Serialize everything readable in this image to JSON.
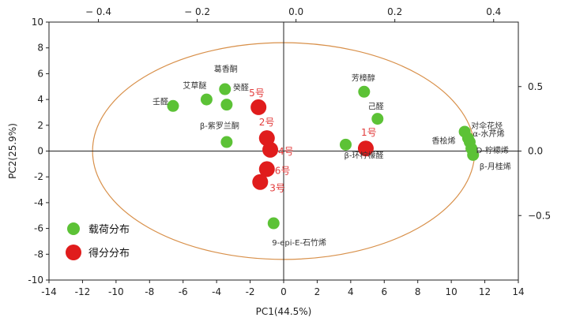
{
  "chart_data": {
    "type": "scatter",
    "xlabel": "PC1(44.5%)",
    "ylabel": "PC2(25.9%)",
    "xlim": [
      -14,
      14
    ],
    "ylim": [
      -10,
      10
    ],
    "x_ticks": [
      "-14",
      "-12",
      "-10",
      "-8",
      "-6",
      "-4",
      "-2",
      "0",
      "2",
      "4",
      "6",
      "8",
      "10",
      "12",
      "14"
    ],
    "y_ticks": [
      "-10",
      "-8",
      "-6",
      "-4",
      "-2",
      "0",
      "2",
      "4",
      "6",
      "8",
      "10"
    ],
    "top_axis": {
      "range": [
        -0.5,
        0.45
      ],
      "ticks": [
        "-0.4",
        "-0.2",
        "0.0",
        "0.2",
        "0.4"
      ]
    },
    "right_axis": {
      "range": [
        -1,
        1
      ],
      "ticks": [
        "0.5",
        "0.0",
        "-0.5"
      ]
    },
    "legend": {
      "position": "bottom-left",
      "items": [
        "载荷分布",
        "得分分布"
      ]
    },
    "colors": {
      "loading": "#5cc236",
      "score": "#e01c1c",
      "ellipse": "#d8904a",
      "axis": "#222222"
    },
    "ellipse": {
      "cx": 0,
      "cy": 0,
      "rx": 11.4,
      "ry": 8.4
    },
    "series": [
      {
        "name": "载荷分布",
        "points": [
          {
            "x": -6.6,
            "y": 3.5,
            "label": "壬醛"
          },
          {
            "x": -4.6,
            "y": 4.0,
            "label": "艾草醚"
          },
          {
            "x": -3.5,
            "y": 4.8,
            "label": "葛香酮"
          },
          {
            "x": -3.4,
            "y": 3.6,
            "label": "癸醛"
          },
          {
            "x": -3.4,
            "y": 0.7,
            "label": "β-紫罗兰酮"
          },
          {
            "x": 4.8,
            "y": 4.6,
            "label": "芳樟醇"
          },
          {
            "x": 5.6,
            "y": 2.5,
            "label": "己醛"
          },
          {
            "x": 3.7,
            "y": 0.5,
            "label": "β-环柠檬醛"
          },
          {
            "x": -0.6,
            "y": -5.6,
            "label": "9-epi-E-石竹烯"
          },
          {
            "x": 10.8,
            "y": 1.5,
            "label": "对伞花烃"
          },
          {
            "x": 11.0,
            "y": 1.0,
            "label": "α-水芹烯"
          },
          {
            "x": 11.1,
            "y": 0.7,
            "label": "香桧烯"
          },
          {
            "x": 11.2,
            "y": 0.2,
            "label": "D-柠檬烯"
          },
          {
            "x": 11.3,
            "y": -0.3,
            "label": "β-月桂烯"
          }
        ]
      },
      {
        "name": "得分分布",
        "points": [
          {
            "x": -1.5,
            "y": 3.4,
            "label": "5号"
          },
          {
            "x": -1.0,
            "y": 1.0,
            "label": "2号"
          },
          {
            "x": -0.8,
            "y": 0.1,
            "label": "4号"
          },
          {
            "x": -1.0,
            "y": -1.4,
            "label": "6号"
          },
          {
            "x": -1.4,
            "y": -2.4,
            "label": "3号"
          },
          {
            "x": 4.9,
            "y": 0.2,
            "label": "1号"
          }
        ]
      }
    ]
  }
}
